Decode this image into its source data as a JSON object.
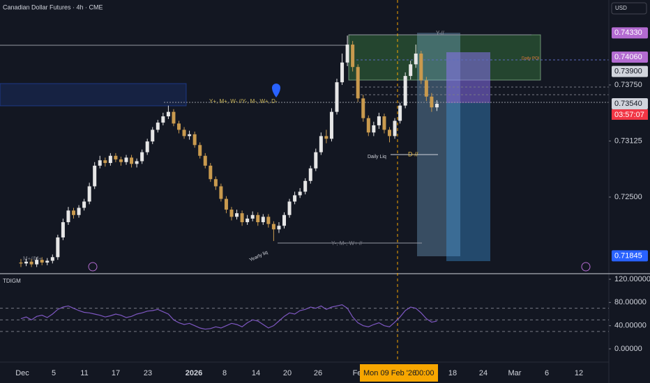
{
  "chart_data": [
    {
      "type": "candlestick",
      "title": "Canadian Dollar Futures · 4h · CME",
      "currency": "USD",
      "up_color": "#e6e6e6",
      "down_color": "#c99a4e",
      "ylim": [
        0.71646,
        0.74697
      ],
      "yticks": [
        {
          "value": 0.7375,
          "label": "0.73750"
        },
        {
          "value": 0.73125,
          "label": "0.73125"
        },
        {
          "value": 0.725,
          "label": "0.72500"
        }
      ],
      "price_labels": [
        {
          "value": 0.7433,
          "label": "0.74330",
          "color": "#b36bd1"
        },
        {
          "value": 0.7406,
          "label": "0.74060",
          "color": "#b36bd1"
        },
        {
          "value": 0.739,
          "label": "0.73900",
          "color": "#d1d4dc"
        },
        {
          "value": 0.7354,
          "label": "0.73540",
          "color": "#d1d4dc"
        },
        {
          "value": 0.71845,
          "label": "0.71845",
          "color": "#2962ff"
        }
      ],
      "countdown": "03:57:07",
      "x_labels": [
        "Dec",
        "5",
        "11",
        "17",
        "23",
        "2026",
        "8",
        "14",
        "20",
        "26",
        "Fe",
        "18",
        "24",
        "Mar",
        "6",
        "12"
      ],
      "crosshair_date": "Mon 09 Feb '26",
      "crosshair_time": "00:00",
      "annotations": [
        "Y+, M+, W- //Y-, M-, W+, D-",
        "D-//",
        "Daily Liq",
        "Yearly liq",
        "Y-, M-, W+ //",
        "Daily POI",
        "Y-//",
        "M+//M+"
      ],
      "open": [
        0.7177,
        0.7176,
        0.7178,
        0.7175,
        0.718,
        0.7177,
        0.7179,
        0.7183,
        0.7205,
        0.7222,
        0.7235,
        0.723,
        0.7238,
        0.7245,
        0.7262,
        0.7285,
        0.7291,
        0.7288,
        0.7296,
        0.7292,
        0.7289,
        0.7294,
        0.7287,
        0.729,
        0.73,
        0.7312,
        0.7325,
        0.7333,
        0.734,
        0.7345,
        0.7332,
        0.7325,
        0.7318,
        0.732,
        0.7308,
        0.7296,
        0.7285,
        0.727,
        0.7262,
        0.7248,
        0.7236,
        0.7228,
        0.7232,
        0.7222,
        0.7226,
        0.723,
        0.7222,
        0.7228,
        0.722,
        0.7214,
        0.7218,
        0.723,
        0.7245,
        0.7252,
        0.7256,
        0.7268,
        0.7282,
        0.73,
        0.7318,
        0.7315,
        0.7345,
        0.7378,
        0.74,
        0.742,
        0.7395,
        0.736,
        0.7338,
        0.7322,
        0.733,
        0.734,
        0.7325,
        0.7318,
        0.7335,
        0.7352,
        0.7385,
        0.7398,
        0.741,
        0.738,
        0.7362,
        0.735
      ],
      "high": [
        0.7181,
        0.7181,
        0.7181,
        0.7183,
        0.7183,
        0.7182,
        0.7186,
        0.7208,
        0.7226,
        0.7239,
        0.7238,
        0.7241,
        0.7248,
        0.7266,
        0.7289,
        0.7296,
        0.7294,
        0.7299,
        0.7299,
        0.7295,
        0.7297,
        0.7297,
        0.7293,
        0.7303,
        0.7315,
        0.7328,
        0.7336,
        0.7344,
        0.7352,
        0.7348,
        0.7335,
        0.7328,
        0.7324,
        0.7323,
        0.7311,
        0.7299,
        0.7288,
        0.7273,
        0.7265,
        0.7251,
        0.7239,
        0.7236,
        0.7235,
        0.723,
        0.7234,
        0.7233,
        0.7231,
        0.7231,
        0.7223,
        0.7222,
        0.7233,
        0.7248,
        0.7256,
        0.726,
        0.7271,
        0.7285,
        0.7304,
        0.7322,
        0.7325,
        0.7349,
        0.7382,
        0.741,
        0.743,
        0.7424,
        0.7398,
        0.7364,
        0.7341,
        0.7334,
        0.7344,
        0.7343,
        0.7328,
        0.7338,
        0.7355,
        0.7389,
        0.7402,
        0.742,
        0.7413,
        0.7384,
        0.7366,
        0.7358
      ],
      "low": [
        0.7172,
        0.7173,
        0.7172,
        0.7172,
        0.7174,
        0.7174,
        0.7176,
        0.718,
        0.7202,
        0.7219,
        0.7226,
        0.7227,
        0.7235,
        0.7242,
        0.7259,
        0.7282,
        0.7284,
        0.7285,
        0.7289,
        0.7285,
        0.7286,
        0.7283,
        0.7283,
        0.7287,
        0.7297,
        0.7309,
        0.7322,
        0.733,
        0.7337,
        0.7329,
        0.7321,
        0.7315,
        0.7314,
        0.7305,
        0.7293,
        0.7282,
        0.7267,
        0.7258,
        0.7245,
        0.7232,
        0.7224,
        0.7225,
        0.7218,
        0.7219,
        0.7223,
        0.7218,
        0.7219,
        0.7216,
        0.7201,
        0.721,
        0.7215,
        0.7227,
        0.7242,
        0.7249,
        0.7253,
        0.7265,
        0.7279,
        0.7297,
        0.731,
        0.7312,
        0.7342,
        0.7375,
        0.7396,
        0.739,
        0.7356,
        0.7334,
        0.7318,
        0.7318,
        0.7326,
        0.7321,
        0.7311,
        0.7315,
        0.7332,
        0.7349,
        0.7381,
        0.7394,
        0.7376,
        0.7357,
        0.7345,
        0.7346
      ],
      "close": [
        0.7176,
        0.7178,
        0.7175,
        0.718,
        0.7177,
        0.7179,
        0.7183,
        0.7205,
        0.7222,
        0.7235,
        0.723,
        0.7238,
        0.7245,
        0.7262,
        0.7285,
        0.7291,
        0.7288,
        0.7296,
        0.7292,
        0.7289,
        0.7294,
        0.7287,
        0.729,
        0.73,
        0.7312,
        0.7325,
        0.7333,
        0.734,
        0.7345,
        0.7332,
        0.7325,
        0.7318,
        0.732,
        0.7308,
        0.7296,
        0.7285,
        0.727,
        0.7262,
        0.7248,
        0.7236,
        0.7228,
        0.7232,
        0.7222,
        0.7226,
        0.723,
        0.7222,
        0.7228,
        0.722,
        0.7214,
        0.7218,
        0.723,
        0.7245,
        0.7252,
        0.7256,
        0.7268,
        0.7282,
        0.73,
        0.7318,
        0.7315,
        0.7345,
        0.7378,
        0.74,
        0.742,
        0.7395,
        0.736,
        0.7338,
        0.7322,
        0.733,
        0.734,
        0.7325,
        0.7318,
        0.7335,
        0.7352,
        0.7385,
        0.7398,
        0.741,
        0.738,
        0.7362,
        0.735,
        0.7354
      ]
    },
    {
      "type": "line",
      "title": "TDIGM",
      "color": "#7e57c2",
      "ylim": [
        -22.8,
        127.2
      ],
      "yticks": [
        {
          "value": 120,
          "label": "120.00000"
        },
        {
          "value": 80,
          "label": "80.00000"
        },
        {
          "value": 40,
          "label": "40.00000"
        },
        {
          "value": 0,
          "label": "0.00000"
        }
      ],
      "levels": [
        70,
        50,
        30
      ],
      "values": [
        52,
        55,
        50,
        56,
        58,
        54,
        60,
        68,
        72,
        74,
        70,
        66,
        63,
        62,
        60,
        58,
        55,
        57,
        60,
        58,
        54,
        56,
        60,
        62,
        65,
        66,
        68,
        64,
        60,
        50,
        45,
        42,
        44,
        40,
        36,
        34,
        35,
        38,
        36,
        40,
        44,
        42,
        38,
        45,
        50,
        48,
        42,
        36,
        40,
        48,
        56,
        62,
        60,
        66,
        68,
        72,
        70,
        74,
        68,
        72,
        74,
        76,
        70,
        55,
        45,
        40,
        38,
        42,
        45,
        40,
        38,
        46,
        55,
        66,
        72,
        70,
        62,
        52,
        46,
        48
      ]
    }
  ]
}
